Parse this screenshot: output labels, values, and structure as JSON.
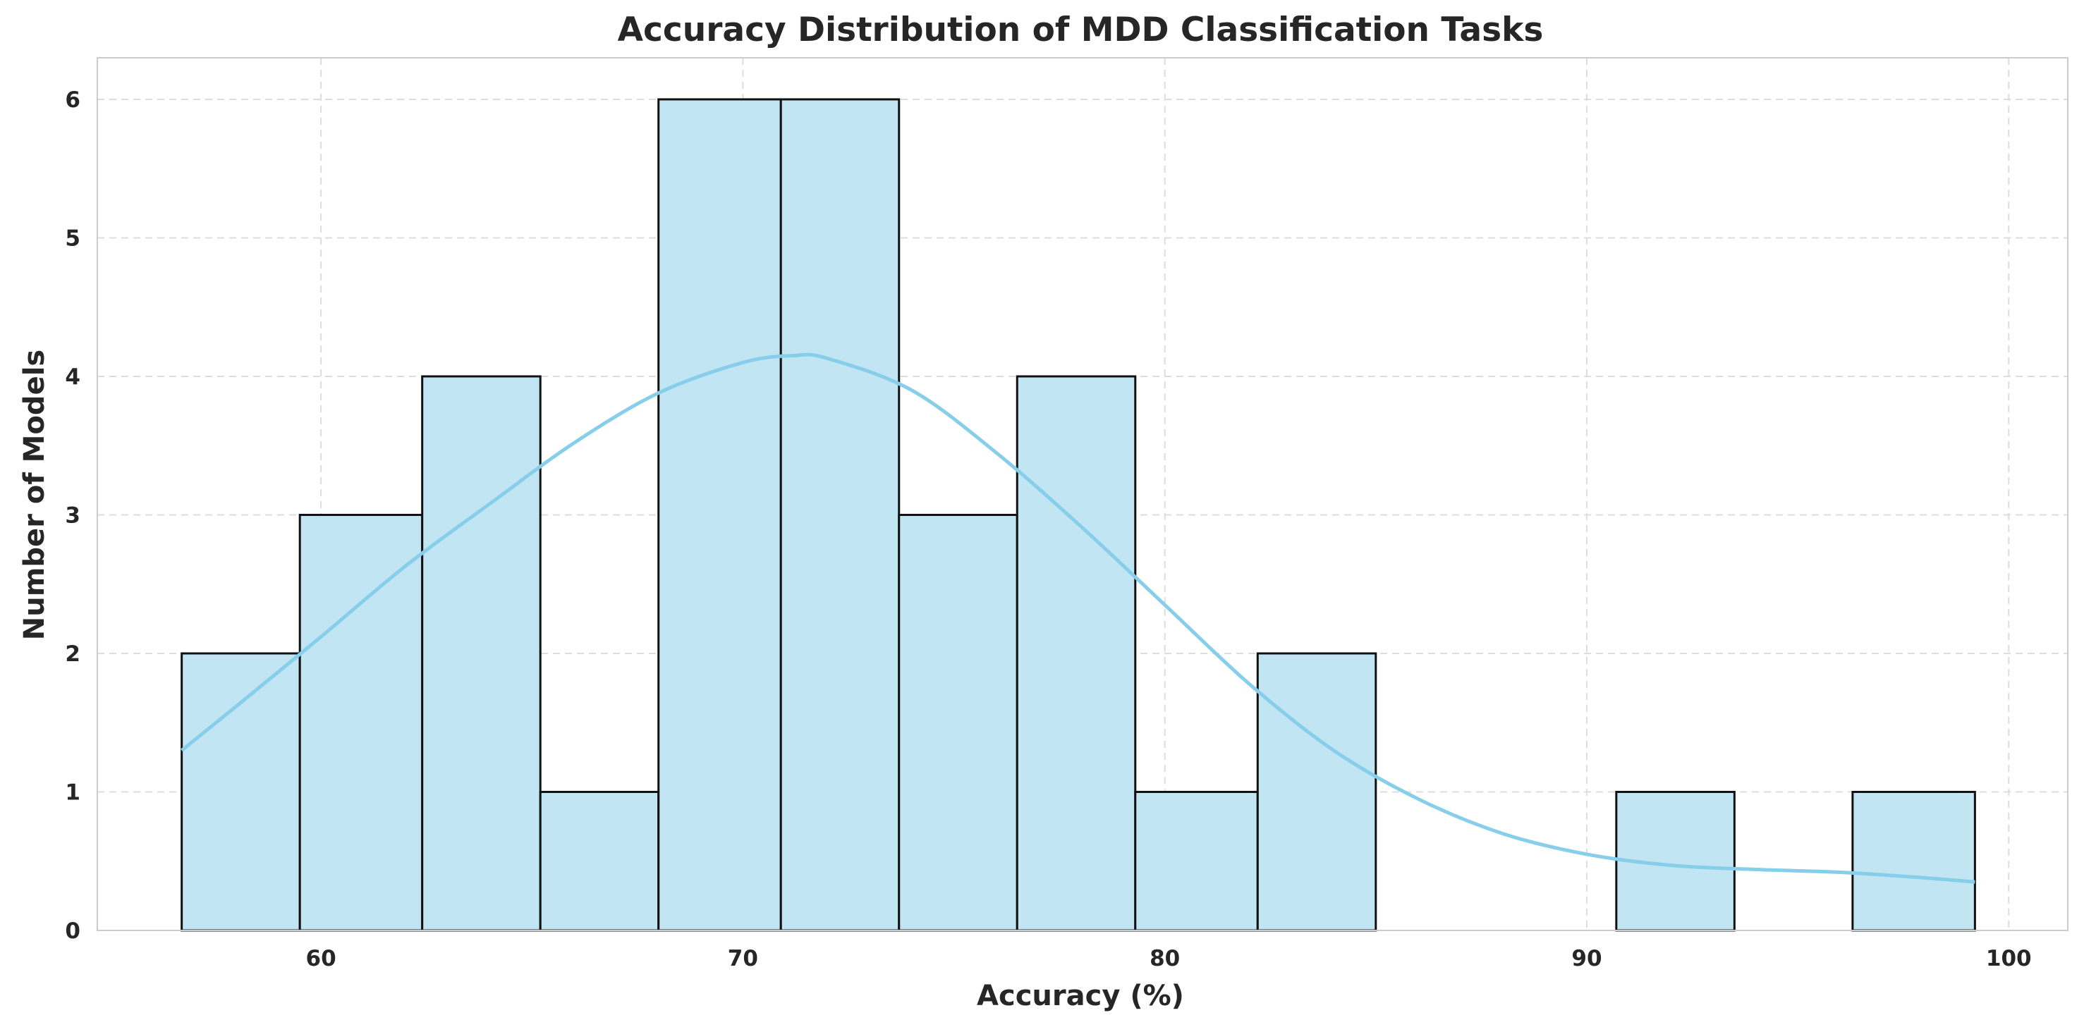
{
  "chart_data": {
    "type": "histogram",
    "title": "Accuracy Distribution of MDD Classification Tasks",
    "xlabel": "Accuracy (%)",
    "ylabel": "Number of Models",
    "xlim": [
      54.7,
      101.4
    ],
    "ylim": [
      0,
      6.3
    ],
    "xticks": [
      60,
      70,
      80,
      90,
      100
    ],
    "yticks": [
      0,
      1,
      2,
      3,
      4,
      5,
      6
    ],
    "grid": true,
    "bar_color": "#c2e5f4",
    "bar_edge_color": "#111111",
    "kde_color": "#87ceeb",
    "bins": [
      {
        "x0": 56.7,
        "x1": 59.5,
        "count": 2
      },
      {
        "x0": 59.5,
        "x1": 62.4,
        "count": 3
      },
      {
        "x0": 62.4,
        "x1": 65.2,
        "count": 4
      },
      {
        "x0": 65.2,
        "x1": 68.0,
        "count": 1
      },
      {
        "x0": 68.0,
        "x1": 70.9,
        "count": 6
      },
      {
        "x0": 70.9,
        "x1": 73.7,
        "count": 6
      },
      {
        "x0": 73.7,
        "x1": 76.5,
        "count": 3
      },
      {
        "x0": 76.5,
        "x1": 79.3,
        "count": 4
      },
      {
        "x0": 79.3,
        "x1": 82.2,
        "count": 1
      },
      {
        "x0": 82.2,
        "x1": 85.0,
        "count": 2
      },
      {
        "x0": 85.0,
        "x1": 87.8,
        "count": 0
      },
      {
        "x0": 87.8,
        "x1": 90.7,
        "count": 0
      },
      {
        "x0": 90.7,
        "x1": 93.5,
        "count": 1
      },
      {
        "x0": 93.5,
        "x1": 96.3,
        "count": 0
      },
      {
        "x0": 96.3,
        "x1": 99.2,
        "count": 1
      }
    ],
    "kde": {
      "x": [
        56.7,
        58,
        60,
        62,
        64,
        66,
        68,
        70,
        71.2,
        72,
        74,
        76,
        78,
        80,
        82,
        84,
        86,
        88,
        90,
        92,
        94,
        96,
        98,
        99.2
      ],
      "y": [
        1.3,
        1.62,
        2.12,
        2.63,
        3.08,
        3.52,
        3.88,
        4.1,
        4.15,
        4.13,
        3.9,
        3.45,
        2.92,
        2.35,
        1.78,
        1.3,
        0.95,
        0.7,
        0.55,
        0.47,
        0.44,
        0.42,
        0.38,
        0.35
      ]
    }
  }
}
